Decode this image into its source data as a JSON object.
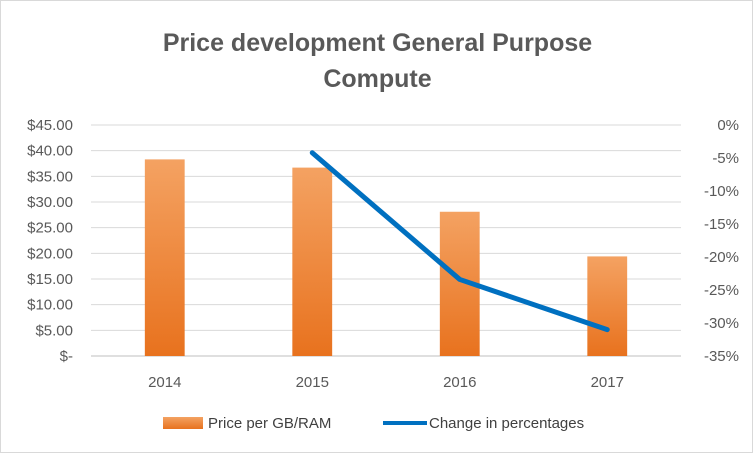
{
  "chart_data": {
    "type": "bar",
    "title_line1": "Price development General Purpose",
    "title_line2": "Compute",
    "categories": [
      "2014",
      "2015",
      "2016",
      "2017"
    ],
    "series": [
      {
        "name": "Price  per GB/RAM",
        "type": "bar",
        "axis": "left",
        "color": "#ED7D31",
        "values": [
          38.3,
          36.7,
          28.1,
          19.4
        ]
      },
      {
        "name": "Change in percentages",
        "type": "line",
        "axis": "right",
        "color": "#0070C0",
        "values": [
          null,
          -4.2,
          -23.4,
          -31.0
        ]
      }
    ],
    "y_left": {
      "min": 0,
      "max": 45,
      "step": 5,
      "tick_labels": [
        "$-",
        "$5.00",
        "$10.00",
        "$15.00",
        "$20.00",
        "$25.00",
        "$30.00",
        "$35.00",
        "$40.00",
        "$45.00"
      ]
    },
    "y_right": {
      "min": -35,
      "max": 0,
      "step": 5,
      "tick_labels": [
        "-35%",
        "-30%",
        "-25%",
        "-20%",
        "-15%",
        "-10%",
        "-5%",
        "0%"
      ]
    },
    "grid": true,
    "legend": "bottom"
  }
}
